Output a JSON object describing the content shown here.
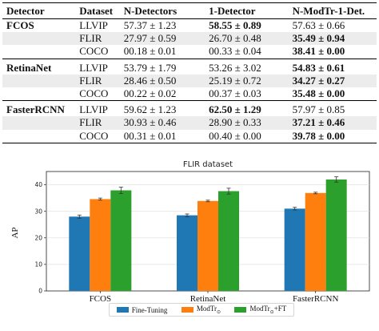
{
  "table": {
    "headers": [
      "Detector",
      "Dataset",
      "N-Detectors",
      "1-Detector",
      "N-ModTr-1-Det."
    ],
    "groups": [
      {
        "detector": "FCOS",
        "rows": [
          {
            "dataset": "LLVIP",
            "n_detectors": "57.37 ± 1.23",
            "one_detector": "58.55 ± 0.89",
            "n_modtr": "57.63 ± 0.66",
            "best": "one_detector"
          },
          {
            "dataset": "FLIR",
            "n_detectors": "27.97 ± 0.59",
            "one_detector": "26.70 ± 0.48",
            "n_modtr": "35.49 ± 0.94",
            "best": "n_modtr"
          },
          {
            "dataset": "COCO",
            "n_detectors": "00.18 ± 0.01",
            "one_detector": "00.33 ± 0.04",
            "n_modtr": "38.41 ± 0.00",
            "best": "n_modtr"
          }
        ]
      },
      {
        "detector": "RetinaNet",
        "rows": [
          {
            "dataset": "LLVIP",
            "n_detectors": "53.79 ± 1.79",
            "one_detector": "53.26 ± 3.02",
            "n_modtr": "54.83 ± 0.61",
            "best": "n_modtr"
          },
          {
            "dataset": "FLIR",
            "n_detectors": "28.46 ± 0.50",
            "one_detector": "25.19 ± 0.72",
            "n_modtr": "34.27 ± 0.27",
            "best": "n_modtr"
          },
          {
            "dataset": "COCO",
            "n_detectors": "00.22 ± 0.02",
            "one_detector": "00.37 ± 0.03",
            "n_modtr": "35.48 ± 0.00",
            "best": "n_modtr"
          }
        ]
      },
      {
        "detector": "FasterRCNN",
        "rows": [
          {
            "dataset": "LLVIP",
            "n_detectors": "59.62 ± 1.23",
            "one_detector": "62.50 ± 1.29",
            "n_modtr": "57.97 ± 0.85",
            "best": "one_detector"
          },
          {
            "dataset": "FLIR",
            "n_detectors": "30.93 ± 0.46",
            "one_detector": "28.90 ± 0.33",
            "n_modtr": "37.21 ± 0.46",
            "best": "n_modtr"
          },
          {
            "dataset": "COCO",
            "n_detectors": "00.31 ± 0.01",
            "one_detector": "00.40 ± 0.00",
            "n_modtr": "39.78 ± 0.00",
            "best": "n_modtr"
          }
        ]
      }
    ]
  },
  "chart_data": {
    "type": "bar",
    "title": "FLIR dataset",
    "ylabel": "AP",
    "xlabel": "",
    "categories": [
      "FCOS",
      "RetinaNet",
      "FasterRCNN"
    ],
    "series": [
      {
        "name": "Fine-Tuning",
        "values": [
          28.0,
          28.5,
          31.0
        ],
        "errors": [
          0.6,
          0.5,
          0.5
        ],
        "color": "#1f77b4"
      },
      {
        "name": "ModTr",
        "name_subscript": "⊙",
        "values": [
          34.6,
          33.9,
          36.9
        ],
        "errors": [
          0.4,
          0.3,
          0.3
        ],
        "color": "#ff7f0e"
      },
      {
        "name": "ModTr",
        "name_subscript": "⊙",
        "name_suffix": "+FT",
        "values": [
          37.9,
          37.6,
          42.0
        ],
        "errors": [
          1.2,
          1.1,
          1.0
        ],
        "color": "#2ca02c"
      }
    ],
    "ylim": [
      0,
      45
    ],
    "yticks": [
      0,
      10,
      20,
      30,
      40
    ],
    "grid": true,
    "legend": "bottom"
  }
}
